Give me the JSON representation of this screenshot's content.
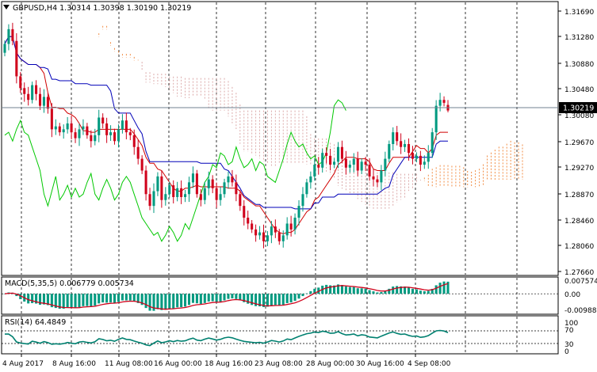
{
  "header": {
    "main_title": "GBPUSD,H4  1.30314 1.30398 1.30190 1.30219",
    "macd_title": "MACD(5,35,5) 0.006779 0.005734",
    "rsi_title": "RSI(14) 64.4849"
  },
  "price_axis": {
    "ticks": [
      "1.31690",
      "1.31280",
      "1.30880",
      "1.30480",
      "1.30080",
      "1.29670",
      "1.29270",
      "1.28870",
      "1.28460",
      "1.28060",
      "1.27660"
    ],
    "current_price": "1.30219"
  },
  "macd_axis": {
    "ticks": [
      "0.007574",
      "0.00",
      "-0.009888"
    ]
  },
  "rsi_axis": {
    "ticks": [
      "100",
      "70",
      "30",
      "0"
    ]
  },
  "time_axis": {
    "labels": [
      "4 Aug 2017",
      "8 Aug 16:00",
      "11 Aug 08:00",
      "16 Aug 00:00",
      "18 Aug 16:00",
      "23 Aug 08:00",
      "28 Aug 00:00",
      "30 Aug 16:00",
      "4 Sep 08:00"
    ]
  },
  "colors": {
    "bull": "#009a80",
    "bear": "#d0021b",
    "tenkan": "#d00000",
    "kijun": "#0000b8",
    "chikou": "#00c800",
    "cloud_up": "#f08030",
    "cloud_down": "#d8a0a0",
    "macd_hist": "#009a80",
    "macd_signal": "#d0021b",
    "rsi_line": "#008070"
  },
  "chart_data": {
    "type": "candlestick",
    "symbol": "GBPUSD",
    "timeframe": "H4",
    "open": 1.30314,
    "high": 1.30398,
    "low": 1.3019,
    "close": 1.30219,
    "ylim": [
      1.275,
      1.318
    ],
    "closes": [
      1.3135,
      1.316,
      1.314,
      1.308,
      1.306,
      1.305,
      1.304,
      1.3065,
      1.305,
      1.303,
      1.3045,
      1.3025,
      1.299,
      1.2995,
      1.2985,
      1.299,
      1.3,
      1.2985,
      1.2975,
      1.299,
      1.2995,
      1.298,
      1.297,
      1.298,
      1.301,
      1.3,
      1.298,
      1.2985,
      1.297,
      1.299,
      1.3005,
      1.2985,
      1.298,
      1.296,
      1.294,
      1.292,
      1.288,
      1.286,
      1.2885,
      1.291,
      1.287,
      1.288,
      1.2895,
      1.2875,
      1.289,
      1.2875,
      1.288,
      1.29,
      1.2915,
      1.288,
      1.287,
      1.289,
      1.2905,
      1.289,
      1.287,
      1.288,
      1.29,
      1.291,
      1.29,
      1.288,
      1.286,
      1.284,
      1.283,
      1.282,
      1.281,
      1.2815,
      1.28,
      1.281,
      1.2825,
      1.2815,
      1.28,
      1.281,
      1.283,
      1.282,
      1.284,
      1.286,
      1.288,
      1.29,
      1.291,
      1.293,
      1.2925,
      1.295,
      1.2945,
      1.293,
      1.2935,
      1.296,
      1.294,
      1.2925,
      1.293,
      1.294,
      1.292,
      1.2935,
      1.293,
      1.291,
      1.2905,
      1.29,
      1.292,
      1.294,
      1.2965,
      1.2985,
      1.297,
      1.296,
      1.2965,
      1.295,
      1.294,
      1.2945,
      1.293,
      1.2935,
      1.295,
      1.2985,
      1.303,
      1.304,
      1.3035,
      1.3022
    ],
    "macd_ylim": [
      -0.011,
      0.0085
    ],
    "macd_main": 0.006779,
    "macd_signal": 0.005734,
    "rsi_value": 64.4849,
    "rsi_levels": [
      70,
      30
    ]
  }
}
